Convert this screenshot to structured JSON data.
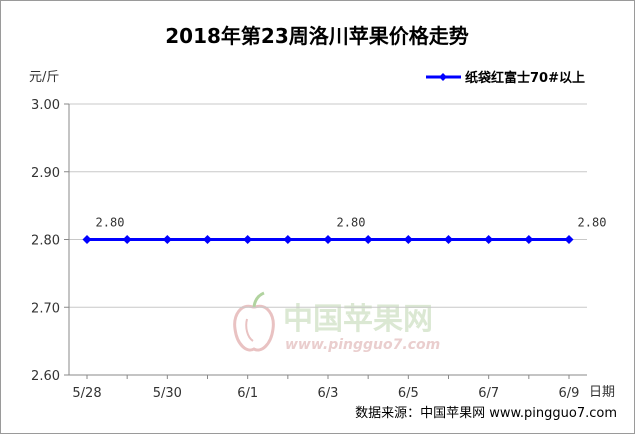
{
  "chart_data": {
    "type": "line",
    "title": "2018年第23周洛川苹果价格走势",
    "ylabel": "元/斤",
    "xlabel": "日期",
    "ylim": [
      2.6,
      3.0
    ],
    "yticks": [
      "2.60",
      "2.70",
      "2.80",
      "2.90",
      "3.00"
    ],
    "ytick_values": [
      2.6,
      2.7,
      2.8,
      2.9,
      3.0
    ],
    "x": [
      "5/28",
      "5/29",
      "5/30",
      "5/31",
      "6/1",
      "6/2",
      "6/3",
      "6/4",
      "6/5",
      "6/6",
      "6/7",
      "6/8",
      "6/9"
    ],
    "xtick_labels": [
      "5/28",
      "5/30",
      "6/1",
      "6/3",
      "6/5",
      "6/7",
      "6/9"
    ],
    "series": [
      {
        "name": "纸袋红富士70#以上",
        "color": "#0000ff",
        "values": [
          2.8,
          2.8,
          2.8,
          2.8,
          2.8,
          2.8,
          2.8,
          2.8,
          2.8,
          2.8,
          2.8,
          2.8,
          2.8
        ]
      }
    ],
    "data_labels": [
      {
        "index": 0,
        "text": "2.80"
      },
      {
        "index": 6,
        "text": "2.80"
      },
      {
        "index": 12,
        "text": "2.80"
      }
    ],
    "grid": "horizontal",
    "legend": "top-right"
  },
  "footer": {
    "source": "数据来源：中国苹果网 www.pingguo7.com"
  },
  "watermark": {
    "name": "中国苹果网",
    "url": "www.pingguo7.com",
    "icon": "apple-logo-icon"
  }
}
